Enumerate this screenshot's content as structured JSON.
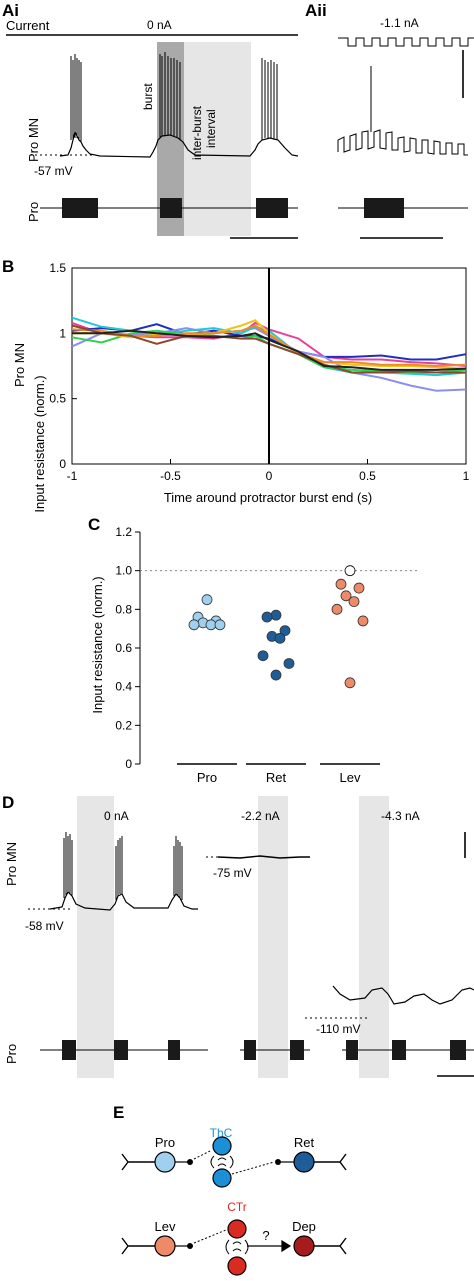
{
  "panel_a": {
    "label_i": "Ai",
    "label_ii": "Aii",
    "current_label": "Current",
    "current_i": "0 nA",
    "current_ii": "-1.1 nA",
    "row_mn": "Pro MN",
    "row_pro": "Pro",
    "resting": "-57 mV",
    "burst_label": "burst",
    "interval_label_1": "inter-burst",
    "interval_label_2": "interval"
  },
  "panel_b": {
    "label": "B",
    "ylabel": "Input resistance (norm.)",
    "ylabel_left": "Pro MN",
    "xlabel": "Time around protractor burst end (s)",
    "yticks": [
      "0",
      "0.5",
      "1",
      "1.5"
    ],
    "xticks": [
      "-1",
      "-0.5",
      "0",
      "0.5",
      "1"
    ]
  },
  "panel_c": {
    "label": "C",
    "ylabel": "Input resistance (norm.)",
    "yticks": [
      "0",
      "0.2",
      "0.4",
      "0.6",
      "0.8",
      "1.0",
      "1.2"
    ],
    "categories": [
      "Pro",
      "Ret",
      "Lev"
    ]
  },
  "panel_d": {
    "label": "D",
    "row_mn": "Pro MN",
    "row_pro": "Pro",
    "currents": [
      "0 nA",
      "-2.2 nA",
      "-4.3 nA"
    ],
    "potentials": [
      "-58 mV",
      "-75 mV",
      "-110 mV"
    ]
  },
  "panel_e": {
    "label": "E",
    "top": {
      "left": "Pro",
      "center": "ThC",
      "right": "Ret"
    },
    "bottom": {
      "left": "Lev",
      "center": "CTr",
      "right": "Dep",
      "question": "?"
    }
  },
  "colors": {
    "pro": "#9fd0ef",
    "ret": "#1f5d99",
    "lev": "#ef8a68",
    "dep": "#a61c1c",
    "thc": "#1d8fd6",
    "ctr": "#d92b1f",
    "shade_dark": "#a9a9a9",
    "shade_light": "#e6e6e6"
  },
  "chart_data": [
    {
      "type": "line",
      "x": [
        -1,
        -0.85,
        -0.7,
        -0.57,
        -0.42,
        -0.28,
        -0.14,
        -0.07,
        0,
        0.15,
        0.28,
        0.42,
        0.57,
        0.72,
        0.85,
        1
      ],
      "series": [
        {
          "color": "#e8409a",
          "values": [
            1.08,
            1.0,
            0.98,
            0.97,
            0.97,
            0.96,
            1.0,
            1.08,
            1.03,
            0.96,
            0.82,
            0.8,
            0.8,
            0.78,
            0.77,
            0.75
          ]
        },
        {
          "color": "#1f2fc0",
          "values": [
            1.02,
            1.04,
            1.02,
            1.07,
            0.99,
            1.02,
            0.98,
            0.98,
            0.96,
            0.86,
            0.82,
            0.82,
            0.83,
            0.8,
            0.8,
            0.84
          ]
        },
        {
          "color": "#8b8ef0",
          "values": [
            0.9,
            1.0,
            0.99,
            1.0,
            1.04,
            1.0,
            1.02,
            1.04,
            0.98,
            0.86,
            0.82,
            0.7,
            0.66,
            0.6,
            0.56,
            0.57
          ]
        },
        {
          "color": "#20c8d8",
          "values": [
            1.12,
            1.05,
            1.02,
            0.99,
            1.02,
            1.04,
            1.0,
            1.05,
            1.02,
            0.84,
            0.74,
            0.7,
            0.7,
            0.69,
            0.68,
            0.7
          ]
        },
        {
          "color": "#33d04d",
          "values": [
            0.97,
            0.93,
            1.0,
            1.02,
            0.99,
            0.98,
            0.96,
            0.98,
            0.92,
            0.84,
            0.74,
            0.72,
            0.71,
            0.7,
            0.7,
            0.72
          ]
        },
        {
          "color": "#f0c21c",
          "values": [
            1.0,
            1.0,
            0.97,
            0.99,
            0.99,
            1.0,
            1.06,
            1.1,
            1.0,
            0.84,
            0.78,
            0.76,
            0.75,
            0.75,
            0.74,
            0.73
          ]
        },
        {
          "color": "#f08a24",
          "values": [
            1.03,
            1.02,
            0.98,
            0.98,
            1.0,
            1.0,
            1.02,
            1.06,
            0.99,
            0.85,
            0.78,
            0.78,
            0.76,
            0.76,
            0.75,
            0.76
          ]
        },
        {
          "color": "#8a4a30",
          "values": [
            1.06,
            1.0,
            0.98,
            0.92,
            0.98,
            0.98,
            0.96,
            0.96,
            0.92,
            0.84,
            0.76,
            0.7,
            0.7,
            0.71,
            0.7,
            0.7
          ]
        },
        {
          "color": "#222222",
          "values": [
            1.0,
            1.0,
            1.02,
            1.0,
            0.98,
            0.97,
            0.98,
            1.0,
            0.95,
            0.86,
            0.75,
            0.74,
            0.72,
            0.72,
            0.72,
            0.73
          ]
        }
      ],
      "xlim": [
        -1,
        1
      ],
      "ylim": [
        0,
        1.5
      ],
      "grid": false
    },
    {
      "type": "scatter",
      "categories": [
        "Pro",
        "Ret",
        "Lev"
      ],
      "ylim": [
        0,
        1.2
      ],
      "reference_line": 1.0,
      "series": [
        {
          "color": "#9fd0ef",
          "values": [
            0.85,
            0.76,
            0.74,
            0.73,
            0.72,
            0.72,
            0.72
          ]
        },
        {
          "color": "#1f5d99",
          "values": [
            0.77,
            0.76,
            0.69,
            0.66,
            0.65,
            0.56,
            0.52,
            0.46
          ]
        },
        {
          "color": "#ef8a68",
          "values": [
            1.0,
            0.93,
            0.91,
            0.87,
            0.84,
            0.8,
            0.74,
            0.42
          ]
        }
      ]
    }
  ]
}
